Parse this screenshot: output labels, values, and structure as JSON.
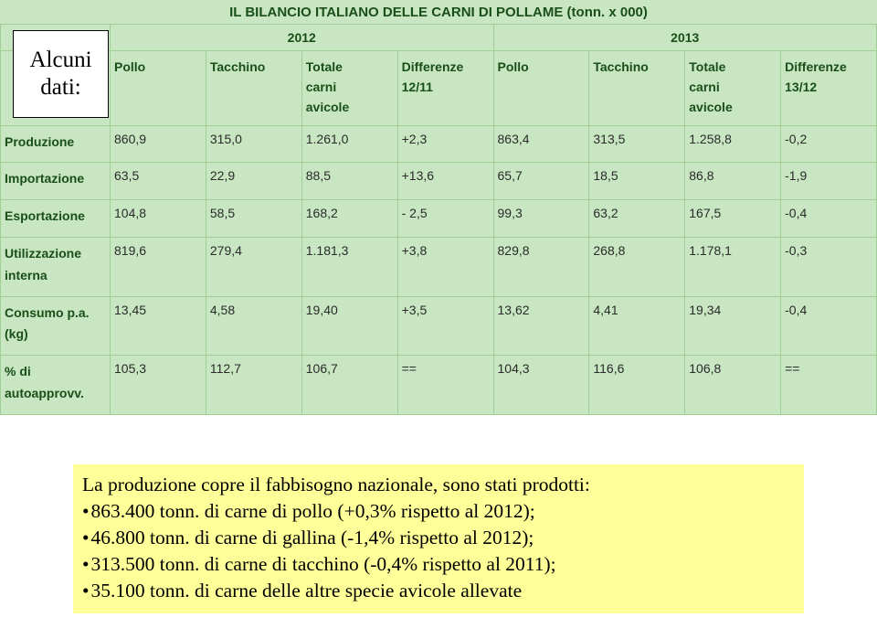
{
  "colors": {
    "table_bg": "#c7e6c1",
    "border": "#a0cf96",
    "header_text": "#1a4f1a",
    "data_text": "#2b2b2b",
    "bullets_bg": "#ffff99"
  },
  "title": "IL BILANCIO ITALIANO DELLE CARNI DI POLLAME (tonn. x 000)",
  "overlay": {
    "line1": "Alcuni",
    "line2": "dati:"
  },
  "table": {
    "year_cols": [
      "2012",
      "2013"
    ],
    "sub_cols": [
      "Pollo",
      "Tacchino",
      "Totale\ncarni\navicole",
      "Differenze\n12/11",
      "Pollo",
      "Tacchino",
      "Totale\ncarni\navicole",
      "Differenze\n13/12"
    ],
    "rows": [
      {
        "label": "Produzione",
        "cells": [
          "860,9",
          "315,0",
          "1.261,0",
          "+2,3",
          "863,4",
          "313,5",
          "1.258,8",
          "-0,2"
        ]
      },
      {
        "label": "Importazione",
        "cells": [
          "63,5",
          "22,9",
          "88,5",
          "+13,6",
          "65,7",
          "18,5",
          "86,8",
          "-1,9"
        ]
      },
      {
        "label": "Esportazione",
        "cells": [
          "104,8",
          "58,5",
          "168,2",
          "- 2,5",
          "99,3",
          "63,2",
          "167,5",
          "-0,4"
        ]
      },
      {
        "label": "Utilizzazione\ninterna",
        "cells": [
          "819,6",
          "279,4",
          "1.181,3",
          "+3,8",
          "829,8",
          "268,8",
          "1.178,1",
          "-0,3"
        ]
      },
      {
        "label": "Consumo p.a. (kg)",
        "cells": [
          "13,45",
          "4,58",
          "19,40",
          "+3,5",
          "13,62",
          "4,41",
          "19,34",
          "-0,4"
        ]
      },
      {
        "label": "% di autoapprovv.",
        "cells": [
          "105,3",
          "112,7",
          "106,7",
          "==",
          "104,3",
          "116,6",
          "106,8",
          "=="
        ]
      }
    ]
  },
  "bullets": {
    "lead": "La produzione copre il fabbisogno nazionale, sono stati prodotti:",
    "items": [
      "863.400 tonn. di carne di pollo (+0,3% rispetto al 2012);",
      "46.800 tonn. di carne di gallina (-1,4% rispetto al 2012);",
      "313.500 tonn. di carne di tacchino (-0,4% rispetto al 2011);",
      "35.100 tonn. di carne delle altre specie avicole allevate"
    ]
  }
}
